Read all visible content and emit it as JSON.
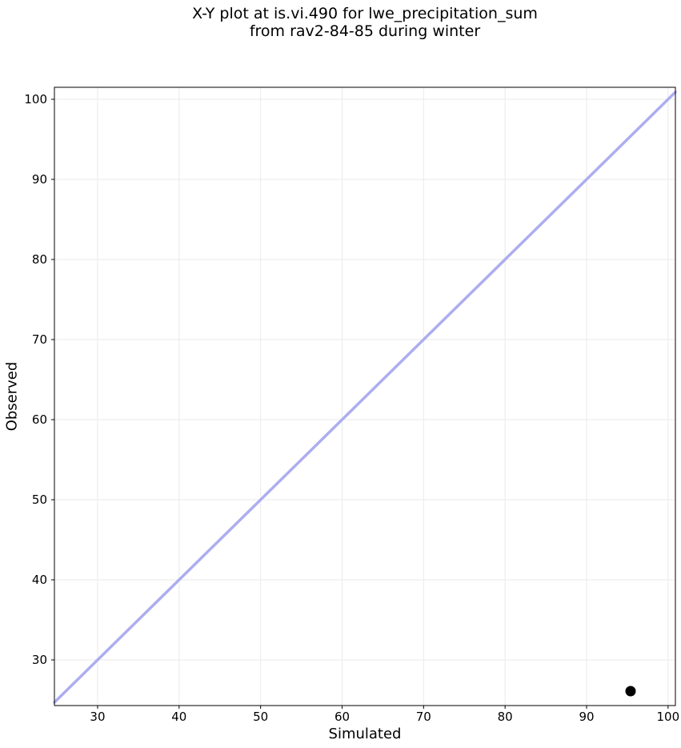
{
  "chart_data": {
    "type": "scatter",
    "title_lines": [
      "X-Y plot at is.vi.490 for lwe_precipitation_sum",
      "from rav2-84-85 during winter"
    ],
    "xlabel": "Simulated",
    "ylabel": "Observed",
    "xlim": [
      24.7,
      100.9
    ],
    "ylim": [
      24.3,
      101.5
    ],
    "x_ticks": [
      30,
      40,
      50,
      60,
      70,
      80,
      90,
      100
    ],
    "y_ticks": [
      30,
      40,
      50,
      60,
      70,
      80,
      90,
      100
    ],
    "grid": true,
    "legend": "none",
    "points": [
      {
        "x": 95.4,
        "y": 26.1
      }
    ],
    "identity_line": {
      "x1": 24.7,
      "y1": 24.7,
      "x2": 100.9,
      "y2": 100.9,
      "color": "#adadf0",
      "width": 3.5
    },
    "marker": {
      "color": "#000000",
      "diameter": 13
    },
    "colors": {
      "grid": "#eaeaea",
      "spine": "#000000",
      "background": "#ffffff",
      "text": "#000000"
    }
  }
}
